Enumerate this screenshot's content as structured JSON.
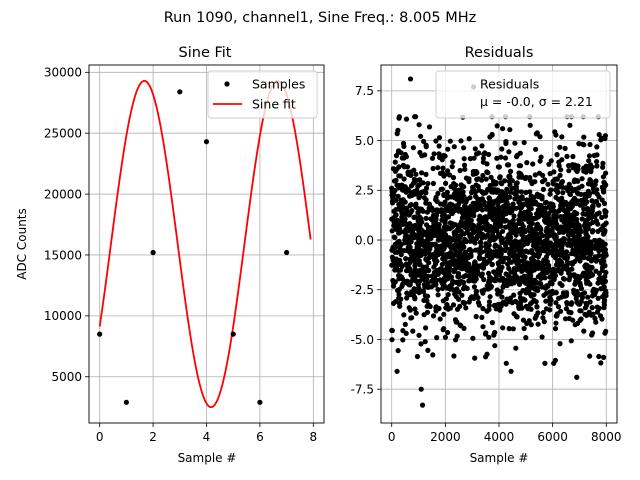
{
  "suptitle": "Run 1090, channel1, Sine Freq.: 8.005 MHz",
  "colors": {
    "samples": "#000000",
    "fit": "#ff0000",
    "residuals": "#000000",
    "grid": "#b0b0b0"
  },
  "chart_data": [
    {
      "type": "line",
      "title": "Sine Fit",
      "xlabel": "Sample #",
      "ylabel": "ADC Counts",
      "xlim": [
        -0.4,
        8.4
      ],
      "ylim": [
        1200,
        30600
      ],
      "xticks": [
        0,
        2,
        4,
        6,
        8
      ],
      "yticks": [
        5000,
        10000,
        15000,
        20000,
        25000,
        30000
      ],
      "grid": true,
      "legend_position": "top-right",
      "series": [
        {
          "name": "Samples",
          "style": "points",
          "x": [
            0,
            1,
            2,
            3,
            4,
            5,
            6,
            7
          ],
          "y": [
            8500,
            2900,
            15200,
            28400,
            24300,
            8500,
            2900,
            15200
          ]
        },
        {
          "name": "Sine fit",
          "style": "curve",
          "model": "offset + amplitude * sin(2*pi*f*x + phase)",
          "offset": 15900,
          "amplitude": 13400,
          "frequency_per_sample": 0.2,
          "phase": -0.53,
          "x_range": [
            0,
            7.9
          ]
        }
      ]
    },
    {
      "type": "scatter",
      "title": "Residuals",
      "xlabel": "Sample #",
      "ylabel": "",
      "xlim": [
        -400,
        8400
      ],
      "ylim": [
        -9.2,
        8.8
      ],
      "xticks": [
        0,
        2000,
        4000,
        6000,
        8000
      ],
      "yticks": [
        -7.5,
        -5.0,
        -2.5,
        0.0,
        2.5,
        5.0,
        7.5
      ],
      "grid": true,
      "legend_position": "top-right",
      "legend_label": "Residuals",
      "stats_label": "μ = -0.0, σ = 2.21",
      "series": [
        {
          "name": "Residuals",
          "n_points": 8000,
          "mean": 0.0,
          "std": 2.21,
          "x_range": [
            0,
            8000
          ],
          "extremes": [
            {
              "x": 700,
              "y": 8.1
            },
            {
              "x": 1150,
              "y": -8.3
            },
            {
              "x": 1100,
              "y": -7.5
            },
            {
              "x": 3050,
              "y": 7.7
            },
            {
              "x": 4450,
              "y": -6.6
            },
            {
              "x": 6900,
              "y": -6.9
            },
            {
              "x": 200,
              "y": -6.6
            },
            {
              "x": 7900,
              "y": -5.9
            },
            {
              "x": 7950,
              "y": 5.1
            }
          ]
        }
      ]
    }
  ]
}
